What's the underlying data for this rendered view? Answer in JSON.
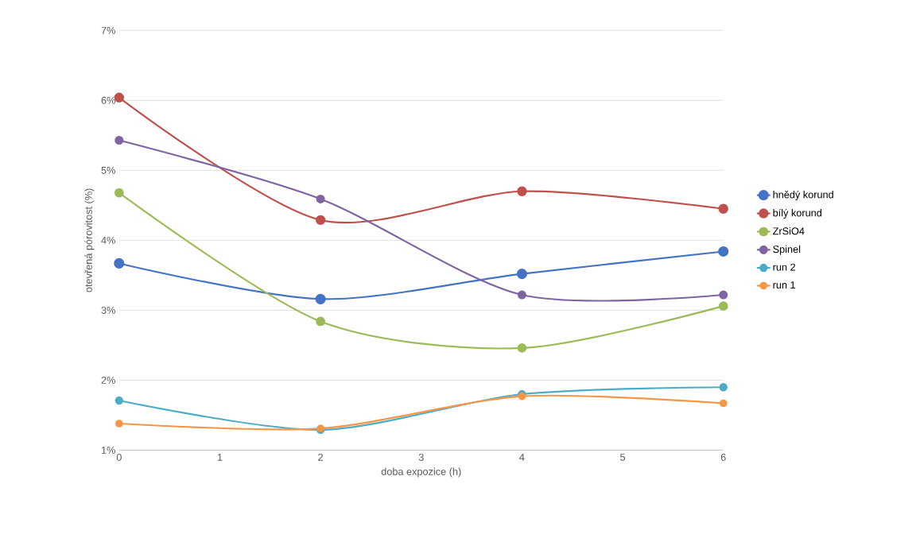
{
  "chart_data": {
    "type": "line",
    "xlabel": "doba expozice (h)",
    "ylabel": "otevřená pórovitost (%)",
    "x": [
      0,
      2,
      4,
      6
    ],
    "series": [
      {
        "name": "hnědý korund",
        "color": "#4472c4",
        "values": [
          3.67,
          3.16,
          3.52,
          3.84
        ]
      },
      {
        "name": "bílý korund",
        "color": "#c0504d",
        "values": [
          6.04,
          4.29,
          4.7,
          4.45
        ]
      },
      {
        "name": "ZrSiO4",
        "color": "#9bbb59",
        "values": [
          4.68,
          2.84,
          2.46,
          3.06
        ]
      },
      {
        "name": "Spinel",
        "color": "#8064a2",
        "values": [
          5.43,
          4.59,
          3.22,
          3.22
        ]
      },
      {
        "name": "run 2",
        "color": "#4bacc6",
        "values": [
          1.71,
          1.29,
          1.8,
          1.9
        ]
      },
      {
        "name": "run 1",
        "color": "#f79646",
        "values": [
          1.38,
          1.31,
          1.77,
          1.67
        ]
      }
    ],
    "xlim": [
      0,
      6
    ],
    "xticks": [
      0,
      1,
      2,
      3,
      4,
      5,
      6
    ],
    "ylim": [
      1,
      7
    ],
    "yticks": [
      {
        "value": 1,
        "label": "1%"
      },
      {
        "value": 2,
        "label": "2%"
      },
      {
        "value": 3,
        "label": "3%"
      },
      {
        "value": 4,
        "label": "4%"
      },
      {
        "value": 5,
        "label": "5%"
      },
      {
        "value": 6,
        "label": "6%"
      },
      {
        "value": 7,
        "label": "7%"
      }
    ],
    "grid": "y",
    "legend": "right",
    "marker": "circle",
    "line_style": "solid"
  }
}
